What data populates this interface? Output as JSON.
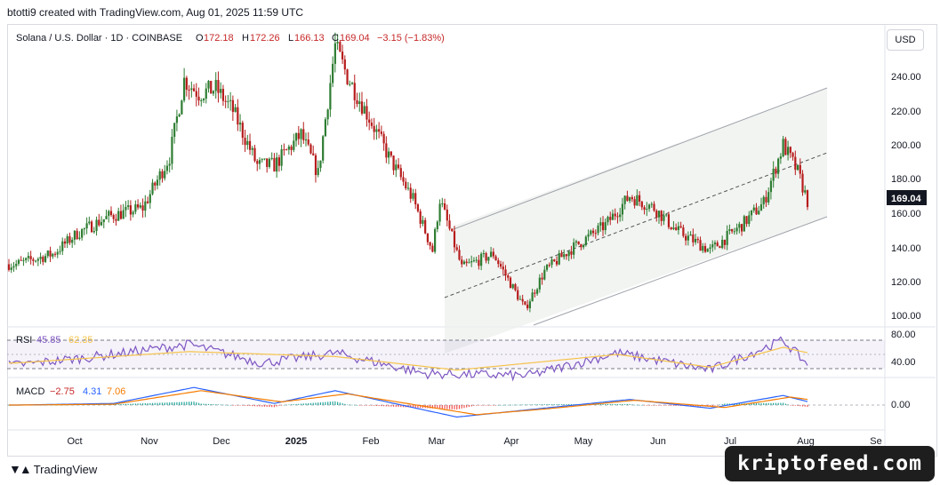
{
  "header": {
    "credit": "btotti9 created with TradingView.com, Aug 01, 2025 11:59 UTC"
  },
  "legend": {
    "symbol": "Solana / U.S. Dollar · 1D · COINBASE",
    "open_label": "O",
    "open": "172.18",
    "high_label": "H",
    "high": "172.26",
    "low_label": "L",
    "low": "166.13",
    "close_label": "C",
    "close": "169.04",
    "change": "−3.15 (−1.83%)"
  },
  "currency": "USD",
  "price_axis": {
    "ticks": [
      "240.00",
      "220.00",
      "200.00",
      "180.00",
      "160.00",
      "140.00",
      "120.00",
      "100.00"
    ],
    "last_price": "169.04"
  },
  "rsi": {
    "label": "RSI",
    "value": "45.85",
    "ma_value": "62.35",
    "ticks": [
      "80.00",
      "40.00"
    ]
  },
  "macd": {
    "label": "MACD",
    "hist": "−2.75",
    "macd": "4.31",
    "signal": "7.06",
    "ticks": [
      "0.00"
    ]
  },
  "time_axis": {
    "labels": [
      "Oct",
      "Nov",
      "Dec",
      "2025",
      "Feb",
      "Mar",
      "Apr",
      "May",
      "Jun",
      "Jul",
      "Aug",
      "Se"
    ]
  },
  "branding": {
    "name": "TradingView",
    "icon": "tradingview-logo-icon"
  },
  "watermark": "kriptofeed.com",
  "chart_data": [
    {
      "type": "line",
      "title": "Solana / U.S. Dollar · 1D · COINBASE",
      "series": [
        {
          "name": "",
          "x": [
            "2024-09-10",
            "2024-09-25",
            "2024-10-05",
            "2024-10-18",
            "2024-11-01",
            "2024-11-12",
            "2024-11-18",
            "2024-11-24",
            "2024-12-01",
            "2024-12-08",
            "2024-12-18",
            "2024-12-25",
            "2025-01-05",
            "2025-01-12",
            "2025-01-19",
            "2025-01-24",
            "2025-02-03",
            "2025-02-10",
            "2025-02-20",
            "2025-02-28",
            "2025-03-03",
            "2025-03-12",
            "2025-03-25",
            "2025-04-07",
            "2025-04-15",
            "2025-04-25",
            "2025-05-10",
            "2025-05-20",
            "2025-05-30",
            "2025-06-08",
            "2025-06-22",
            "2025-07-05",
            "2025-07-14",
            "2025-07-22",
            "2025-07-28",
            "2025-08-01"
          ],
          "values": [
            132,
            138,
            150,
            160,
            165,
            195,
            240,
            232,
            235,
            222,
            190,
            190,
            208,
            185,
            260,
            242,
            215,
            195,
            170,
            140,
            170,
            130,
            138,
            106,
            128,
            140,
            155,
            172,
            165,
            152,
            140,
            155,
            168,
            202,
            186,
            169.04
          ]
        }
      ],
      "ylim": [
        95,
        255
      ],
      "grid": false,
      "annotations": {
        "channel_upper": [
          [
            "2025-03-01",
            149
          ],
          [
            "2025-08-20",
            234
          ]
        ],
        "channel_mid": [
          [
            "2025-03-01",
            111
          ],
          [
            "2025-08-20",
            193
          ]
        ],
        "channel_lower": [
          [
            "2025-03-01",
            73
          ],
          [
            "2025-08-20",
            158
          ]
        ]
      }
    },
    {
      "type": "line",
      "title": "RSI",
      "series": [
        {
          "name": "",
          "x": [
            "2024-09-10",
            "2024-10-15",
            "2024-11-20",
            "2024-12-20",
            "2025-01-19",
            "2025-02-25",
            "2025-04-08",
            "2025-05-15",
            "2025-06-22",
            "2025-07-22",
            "2025-08-01"
          ],
          "values": [
            45,
            58,
            74,
            48,
            62,
            33,
            30,
            62,
            38,
            80,
            45.85
          ]
        },
        {
          "name": "",
          "x": [
            "2024-09-10",
            "2024-11-20",
            "2025-01-19",
            "2025-03-10",
            "2025-05-15",
            "2025-06-22",
            "2025-07-22",
            "2025-08-01"
          ],
          "values": [
            48,
            64,
            57,
            38,
            60,
            42,
            70,
            62.35
          ]
        }
      ],
      "ylim": [
        25,
        85
      ]
    },
    {
      "type": "line",
      "title": "MACD",
      "series": [
        {
          "name": "",
          "x": [
            "2024-09-10",
            "2024-10-20",
            "2024-11-22",
            "2024-12-25",
            "2025-01-19",
            "2025-03-10",
            "2025-04-08",
            "2025-05-20",
            "2025-06-22",
            "2025-07-22",
            "2025-08-01"
          ],
          "values": [
            0,
            2,
            22,
            2,
            18,
            -15,
            -6,
            7,
            -4,
            12,
            4.31
          ]
        },
        {
          "name": "",
          "x": [
            "2024-09-10",
            "2024-10-20",
            "2024-11-25",
            "2024-12-28",
            "2025-01-24",
            "2025-03-18",
            "2025-04-15",
            "2025-05-22",
            "2025-06-28",
            "2025-07-25",
            "2025-08-01"
          ],
          "values": [
            0,
            1,
            18,
            4,
            14,
            -12,
            -5,
            6,
            -3,
            10,
            7.06
          ]
        }
      ],
      "ylim": [
        -22,
        26
      ]
    }
  ]
}
